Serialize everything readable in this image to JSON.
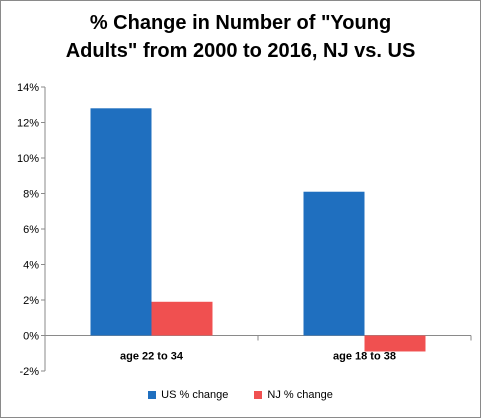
{
  "chart_data": {
    "type": "bar",
    "title_line1": "% Change in Number of \"Young",
    "title_line2": "Adults\" from 2000 to 2016, NJ vs. US",
    "categories": [
      "age 22 to 34",
      "age 18 to 38"
    ],
    "series": [
      {
        "name": "US % change",
        "values": [
          12.8,
          8.1
        ],
        "color": "#1f6fbf"
      },
      {
        "name": "NJ % change",
        "values": [
          1.9,
          -0.9
        ],
        "color": "#f05050"
      }
    ],
    "ylim": [
      -2,
      14
    ],
    "yticks": [
      "-2%",
      "0%",
      "2%",
      "4%",
      "6%",
      "8%",
      "10%",
      "12%",
      "14%"
    ],
    "ytick_values": [
      -2,
      0,
      2,
      4,
      6,
      8,
      10,
      12,
      14
    ],
    "grid": false,
    "legend": "bottom"
  }
}
